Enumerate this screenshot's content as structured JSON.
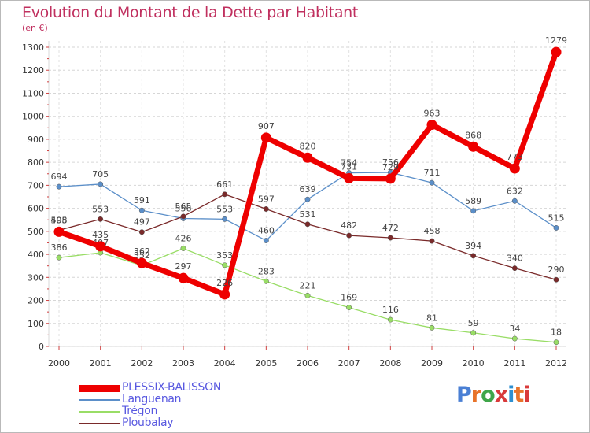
{
  "header": {
    "title": "Evolution du Montant de la Dette par Habitant",
    "subtitle": "(en €)"
  },
  "logo": {
    "text": "Proxiti",
    "colors": [
      "#4a7fd4",
      "#e8732a",
      "#3fa64a",
      "#d93a3a",
      "#2d8fd0",
      "#e8732a",
      "#d93a3a"
    ]
  },
  "chart_data": {
    "type": "line",
    "title": "Evolution du Montant de la Dette par Habitant",
    "subtitle": "(en €)",
    "xlabel": "",
    "ylabel": "",
    "x": [
      "2000",
      "2001",
      "2002",
      "2003",
      "2004",
      "2005",
      "2006",
      "2007",
      "2008",
      "2009",
      "2010",
      "2011",
      "2012"
    ],
    "ylim": [
      0,
      1300
    ],
    "yticks": [
      0,
      100,
      200,
      300,
      400,
      500,
      600,
      700,
      800,
      900,
      1000,
      1100,
      1200,
      1300
    ],
    "grid": "horizontal dashed",
    "legend_position": "bottom-left",
    "series": [
      {
        "name": "PLESSIX-BALISSON",
        "color": "#ee0000",
        "values": [
          498,
          435,
          362,
          297,
          226,
          907,
          820,
          731,
          729,
          963,
          868,
          773,
          1279
        ]
      },
      {
        "name": "Languenan",
        "color": "#5b8fc9",
        "values": [
          694,
          705,
          591,
          556,
          553,
          460,
          639,
          754,
          756,
          711,
          589,
          632,
          515
        ]
      },
      {
        "name": "Trégon",
        "color": "#99dd66",
        "values": [
          386,
          407,
          352,
          426,
          353,
          283,
          221,
          169,
          116,
          81,
          59,
          34,
          18
        ]
      },
      {
        "name": "Ploubalay",
        "color": "#7a2a2a",
        "values": [
          505,
          553,
          497,
          565,
          661,
          597,
          531,
          482,
          472,
          458,
          394,
          340,
          290
        ]
      }
    ]
  }
}
